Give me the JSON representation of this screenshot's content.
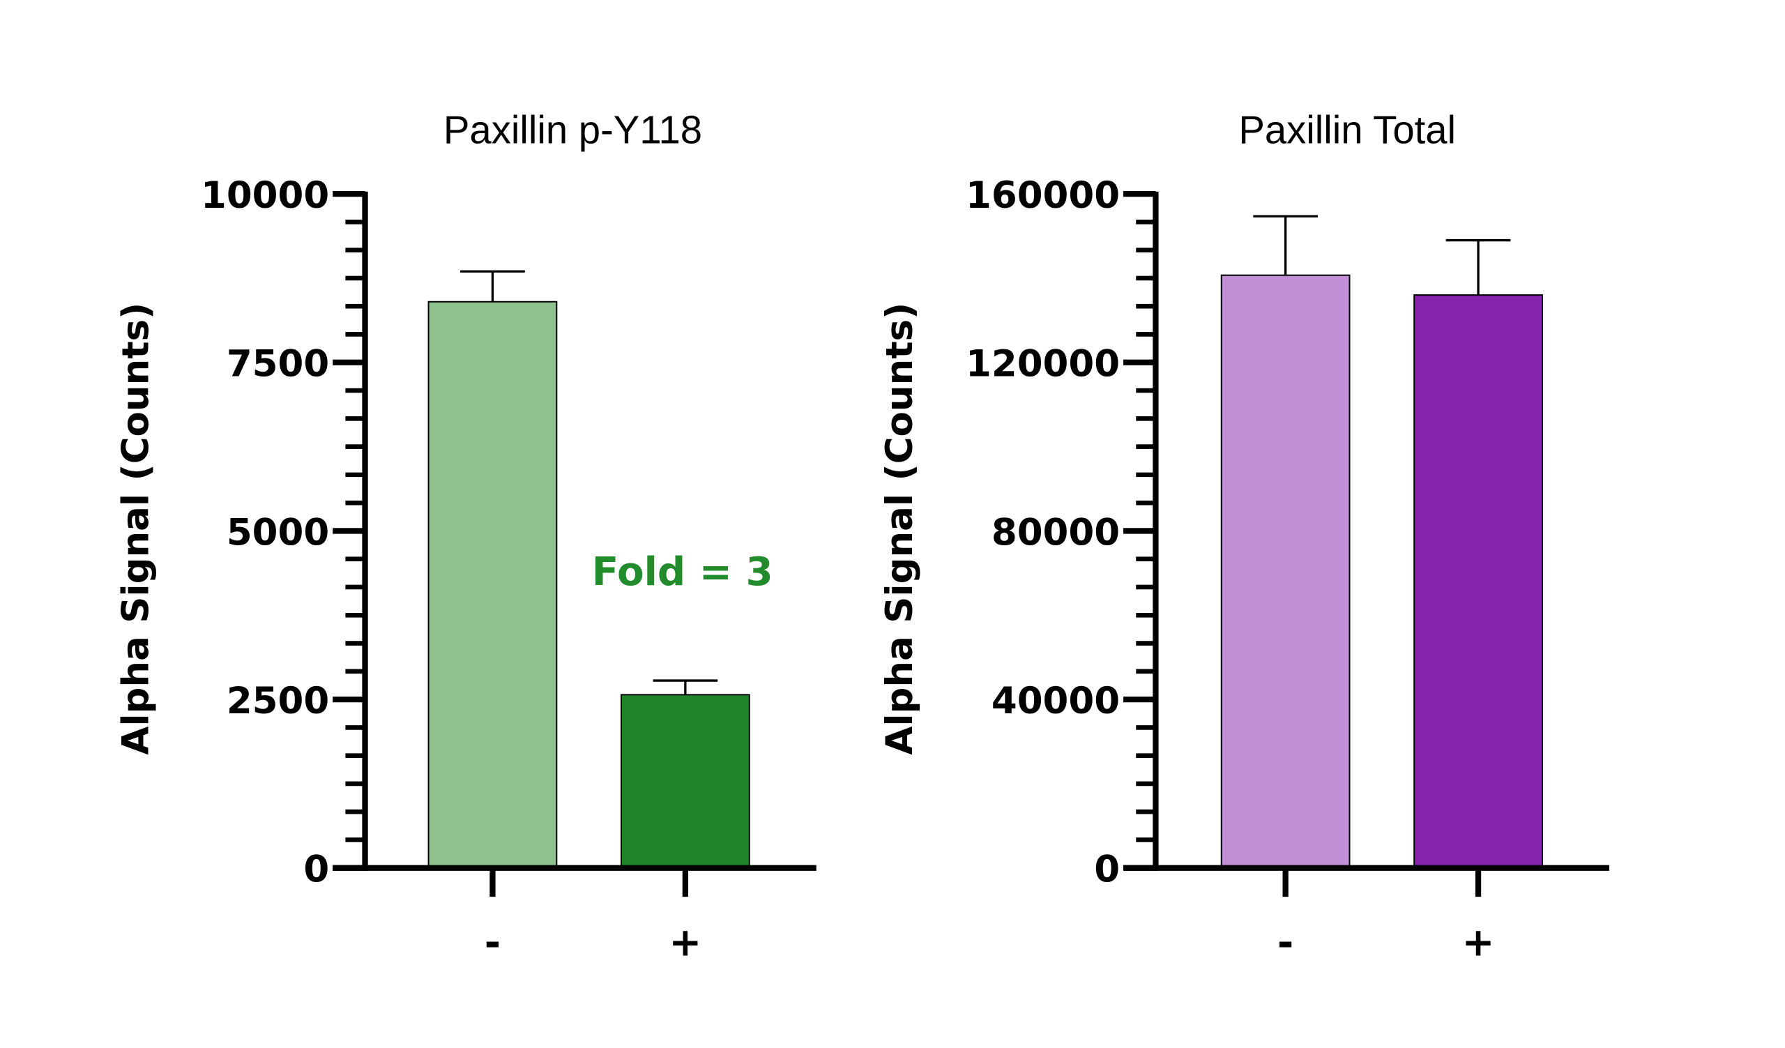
{
  "chart_data": [
    {
      "type": "bar",
      "title": "Paxillin p-Y118",
      "ylabel": "Alpha Signal (Counts)",
      "xlabel": "",
      "categories": [
        "-",
        "+"
      ],
      "values": [
        8400,
        2570
      ],
      "error_upper": [
        8850,
        2780
      ],
      "colors": [
        "#8FC28F",
        "#21862A"
      ],
      "ylim": [
        0,
        10000
      ],
      "yticks": [
        0,
        2500,
        5000,
        7500,
        10000
      ],
      "ytick_labels": [
        "0",
        "2500",
        "5000",
        "7500",
        "10000"
      ],
      "minor_per_major": 6,
      "annotation": {
        "text": "Fold = 3",
        "color": "#228B2B"
      },
      "grid": false
    },
    {
      "type": "bar",
      "title": "Paxillin  Total",
      "ylabel": "Alpha Signal (Counts)",
      "xlabel": "",
      "categories": [
        "-",
        "+"
      ],
      "values": [
        140700,
        136000
      ],
      "error_upper": [
        154700,
        149000
      ],
      "colors": [
        "#C28ED6",
        "#8624AE"
      ],
      "ylim": [
        0,
        160000
      ],
      "yticks": [
        0,
        40000,
        80000,
        120000,
        160000
      ],
      "ytick_labels": [
        "0",
        "40000",
        "80000",
        "120000",
        "160000"
      ],
      "minor_per_major": 6,
      "grid": false
    }
  ]
}
